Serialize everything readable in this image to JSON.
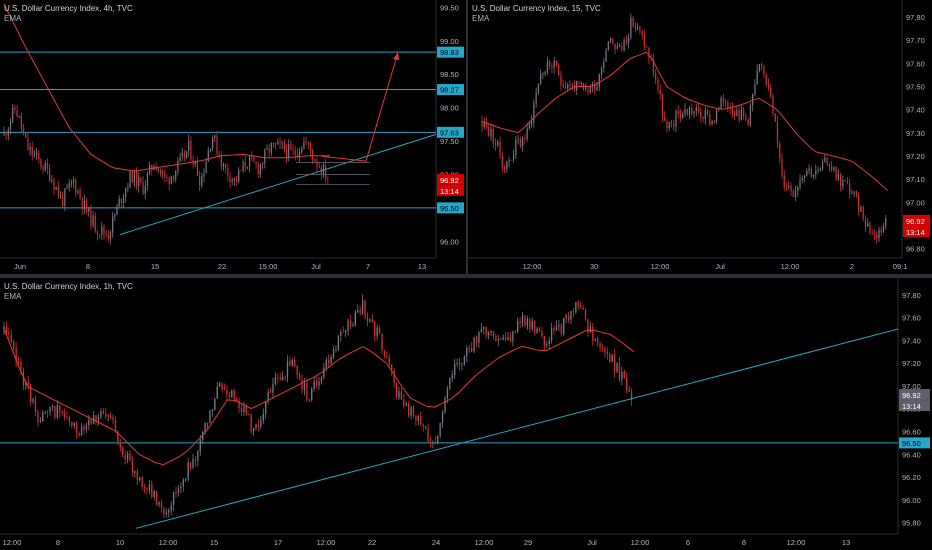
{
  "colors": {
    "background": "#000000",
    "up": "#787b86",
    "down": "#d32f2f",
    "ema": "#e53935",
    "level": "#26a7c9",
    "projection": "#e53935",
    "axis_text": "#b2b5be",
    "price_tag_bg": "#d50000"
  },
  "panes": [
    {
      "id": "pane-4h",
      "title": "U.S. Dollar Currency Index, 4h, TVC",
      "indicator": "EMA",
      "chart_data": {
        "type": "candlestick",
        "timeframe": "4h",
        "ylim": [
          95.75,
          99.55
        ],
        "y_ticks": [
          "99.50",
          "99.00",
          "98.50",
          "98.00",
          "97.50",
          "97.00",
          "96.50",
          "96.00"
        ],
        "x_ticks": [
          "Jun",
          "8",
          "15",
          "22",
          "15:00",
          "Jul",
          "7",
          "13"
        ],
        "horizontal_levels": [
          98.83,
          98.27,
          97.63,
          96.5
        ],
        "level_labels": [
          "98.83",
          "98.27",
          "97.63",
          "96.50"
        ],
        "last_price": "96.92",
        "countdown": "13:14",
        "close_path": [
          97.6,
          98.0,
          97.4,
          97.2,
          97.0,
          96.6,
          96.9,
          96.5,
          96.2,
          96.1,
          96.6,
          97.0,
          96.8,
          97.2,
          96.9,
          97.1,
          97.4,
          96.9,
          97.6,
          97.1,
          96.9,
          97.2,
          97.1,
          97.4,
          97.4,
          97.3,
          97.5,
          97.2,
          96.95
        ],
        "ema_path": [
          99.55,
          98.9,
          98.3,
          97.7,
          97.3,
          97.1,
          97.05,
          97.1,
          97.15,
          97.2,
          97.28,
          97.3,
          97.25,
          97.25,
          97.28,
          97.28
        ],
        "trendline": {
          "from": [
            96.1
          ],
          "to": [
            97.1
          ]
        },
        "projection": {
          "from": 97.2,
          "to": 98.83
        }
      }
    },
    {
      "id": "pane-15",
      "title": "U.S. Dollar Currency Index, 15, TVC",
      "indicator": "EMA",
      "chart_data": {
        "type": "candlestick",
        "timeframe": "15",
        "ylim": [
          96.76,
          97.83
        ],
        "y_ticks": [
          "97.80",
          "97.70",
          "97.60",
          "97.50",
          "97.40",
          "97.30",
          "97.20",
          "97.10",
          "97.00",
          "96.90",
          "96.80"
        ],
        "x_ticks": [
          "12:00",
          "30",
          "12:00",
          "Jul",
          "12:00",
          "2",
          "09:1"
        ],
        "last_price": "96.92",
        "countdown": "13:14",
        "close_path": [
          97.35,
          97.28,
          97.15,
          97.25,
          97.3,
          97.55,
          97.6,
          97.52,
          97.5,
          97.48,
          97.52,
          97.72,
          97.65,
          97.78,
          97.7,
          97.55,
          97.3,
          97.38,
          97.4,
          97.38,
          97.35,
          97.45,
          97.4,
          97.35,
          97.58,
          97.5,
          97.1,
          97.05,
          97.15,
          97.12,
          97.18,
          97.1,
          97.05,
          96.95,
          96.85,
          96.92
        ],
        "ema_path": [
          97.35,
          97.32,
          97.3,
          97.38,
          97.45,
          97.5,
          97.5,
          97.55,
          97.62,
          97.65,
          97.5,
          97.45,
          97.42,
          97.4,
          97.42,
          97.45,
          97.4,
          97.3,
          97.22,
          97.2,
          97.18,
          97.12,
          97.05
        ]
      }
    },
    {
      "id": "pane-1h",
      "title": "U.S. Dollar Currency Index, 1h, TVC",
      "indicator": "EMA",
      "chart_data": {
        "type": "candlestick",
        "timeframe": "1h",
        "ylim": [
          95.7,
          97.86
        ],
        "y_ticks": [
          "97.80",
          "97.60",
          "97.40",
          "97.20",
          "97.00",
          "96.80",
          "96.60",
          "96.40",
          "96.20",
          "96.00",
          "95.80"
        ],
        "x_ticks": [
          "12:00",
          "8",
          "10",
          "12:00",
          "15",
          "17",
          "12:00",
          "22",
          "24",
          "12:00",
          "29",
          "Jul",
          "12:00",
          "6",
          "8",
          "12:00",
          "13"
        ],
        "horizontal_levels": [
          96.5
        ],
        "level_labels": [
          "96.50"
        ],
        "last_price": "96.92",
        "countdown": "13:14",
        "close_path": [
          97.5,
          97.1,
          96.7,
          96.8,
          96.6,
          96.75,
          96.7,
          96.3,
          96.1,
          95.9,
          96.2,
          96.5,
          97.0,
          96.9,
          96.6,
          97.0,
          97.2,
          96.9,
          97.2,
          97.5,
          97.7,
          97.4,
          96.9,
          96.7,
          96.5,
          97.1,
          97.35,
          97.5,
          97.4,
          97.6,
          97.4,
          97.5,
          97.7,
          97.4,
          97.2,
          96.9
        ],
        "ema_path": [
          97.5,
          97.0,
          96.9,
          96.8,
          96.7,
          96.6,
          96.4,
          96.3,
          96.4,
          96.6,
          96.9,
          96.8,
          96.9,
          97.0,
          97.1,
          97.25,
          97.35,
          97.2,
          96.9,
          96.8,
          96.9,
          97.1,
          97.25,
          97.35,
          97.3,
          97.4,
          97.5,
          97.45,
          97.3
        ],
        "trendline": {
          "from": [
            95.75
          ],
          "to": [
            97.5
          ]
        }
      }
    }
  ]
}
